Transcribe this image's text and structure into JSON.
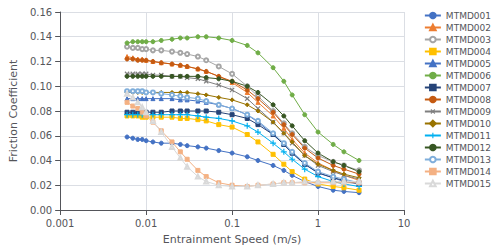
{
  "chart_data": {
    "type": "line",
    "title": "",
    "xlabel": "Entrainment Speed (m/s)",
    "ylabel": "Friction Coefficient",
    "log": "x",
    "grid": true,
    "legend": "upper right",
    "xlim": [
      0.001,
      10
    ],
    "xticks": [
      0.001,
      0.01,
      0.1,
      1,
      10
    ],
    "ylim": [
      0,
      0.16
    ],
    "yticks": [
      {
        "value": 0,
        "label": "0.00"
      },
      {
        "value": 0.02,
        "label": "0.02"
      },
      {
        "value": 0.04,
        "label": "0.04"
      },
      {
        "value": 0.06,
        "label": "0.06"
      },
      {
        "value": 0.08,
        "label": "0.08"
      },
      {
        "value": 0.1,
        "label": "0.10"
      },
      {
        "value": 0.12,
        "label": "0.12"
      },
      {
        "value": 0.14,
        "label": "0.14"
      },
      {
        "value": 0.16,
        "label": "0.16"
      }
    ],
    "x": [
      0.006,
      0.007,
      0.008,
      0.009,
      0.01,
      0.012,
      0.015,
      0.02,
      0.025,
      0.03,
      0.04,
      0.05,
      0.07,
      0.1,
      0.15,
      0.2,
      0.3,
      0.4,
      0.5,
      0.7,
      1.0,
      1.5,
      2.0,
      3.0
    ],
    "series": [
      {
        "name": "MTMD001",
        "color": "#4472C4",
        "marker": "circle",
        "values": [
          0.059,
          0.058,
          0.057,
          0.057,
          0.056,
          0.055,
          0.054,
          0.054,
          0.053,
          0.052,
          0.051,
          0.05,
          0.048,
          0.046,
          0.043,
          0.04,
          0.036,
          0.032,
          0.028,
          0.023,
          0.019,
          0.016,
          0.015,
          0.014
        ]
      },
      {
        "name": "MTMD002",
        "color": "#ED7D31",
        "marker": "triangle",
        "values": [
          0.124,
          0.123,
          0.122,
          0.122,
          0.121,
          0.12,
          0.119,
          0.118,
          0.117,
          0.116,
          0.114,
          0.112,
          0.108,
          0.103,
          0.095,
          0.087,
          0.076,
          0.066,
          0.057,
          0.046,
          0.038,
          0.032,
          0.028,
          0.024
        ]
      },
      {
        "name": "MTMD003",
        "color": "#A5A5A5",
        "marker": "circle-open",
        "values": [
          0.132,
          0.131,
          0.131,
          0.13,
          0.13,
          0.129,
          0.129,
          0.128,
          0.127,
          0.126,
          0.124,
          0.121,
          0.116,
          0.11,
          0.1,
          0.092,
          0.08,
          0.07,
          0.062,
          0.051,
          0.044,
          0.039,
          0.036,
          0.032
        ]
      },
      {
        "name": "MTMD004",
        "color": "#FFC000",
        "marker": "square",
        "values": [
          0.076,
          0.076,
          0.076,
          0.075,
          0.075,
          0.075,
          0.075,
          0.075,
          0.074,
          0.074,
          0.073,
          0.072,
          0.069,
          0.067,
          0.061,
          0.055,
          0.045,
          0.037,
          0.031,
          0.025,
          0.021,
          0.019,
          0.018,
          0.016
        ]
      },
      {
        "name": "MTMD005",
        "color": "#4472C4",
        "marker": "triangle",
        "values": [
          0.09,
          0.09,
          0.09,
          0.09,
          0.09,
          0.09,
          0.09,
          0.09,
          0.089,
          0.089,
          0.088,
          0.087,
          0.085,
          0.082,
          0.077,
          0.071,
          0.061,
          0.053,
          0.046,
          0.037,
          0.03,
          0.026,
          0.023,
          0.021
        ]
      },
      {
        "name": "MTMD006",
        "color": "#70AD47",
        "marker": "circle",
        "values": [
          0.135,
          0.136,
          0.136,
          0.136,
          0.136,
          0.136,
          0.137,
          0.138,
          0.139,
          0.139,
          0.14,
          0.14,
          0.139,
          0.137,
          0.133,
          0.127,
          0.115,
          0.104,
          0.093,
          0.077,
          0.063,
          0.053,
          0.047,
          0.04
        ]
      },
      {
        "name": "MTMD007",
        "color": "#264478",
        "marker": "square",
        "values": [
          0.079,
          0.079,
          0.079,
          0.079,
          0.079,
          0.079,
          0.079,
          0.08,
          0.08,
          0.08,
          0.08,
          0.08,
          0.079,
          0.077,
          0.074,
          0.069,
          0.061,
          0.053,
          0.046,
          0.037,
          0.03,
          0.026,
          0.024,
          0.021
        ]
      },
      {
        "name": "MTMD008",
        "color": "#C55A11",
        "marker": "circle",
        "values": [
          0.122,
          0.122,
          0.121,
          0.121,
          0.121,
          0.12,
          0.119,
          0.118,
          0.117,
          0.116,
          0.114,
          0.112,
          0.108,
          0.104,
          0.097,
          0.09,
          0.079,
          0.069,
          0.061,
          0.05,
          0.042,
          0.036,
          0.033,
          0.029
        ]
      },
      {
        "name": "MTMD009",
        "color": "#7F7F7F",
        "marker": "x",
        "values": [
          0.11,
          0.11,
          0.11,
          0.11,
          0.11,
          0.109,
          0.109,
          0.108,
          0.108,
          0.107,
          0.106,
          0.104,
          0.101,
          0.097,
          0.09,
          0.082,
          0.071,
          0.062,
          0.054,
          0.044,
          0.036,
          0.031,
          0.028,
          0.025
        ]
      },
      {
        "name": "MTMD010",
        "color": "#997300",
        "marker": "diamond",
        "values": [
          0.095,
          0.095,
          0.095,
          0.095,
          0.095,
          0.095,
          0.095,
          0.095,
          0.095,
          0.095,
          0.094,
          0.093,
          0.091,
          0.089,
          0.085,
          0.08,
          0.071,
          0.062,
          0.055,
          0.044,
          0.037,
          0.032,
          0.029,
          0.026
        ]
      },
      {
        "name": "MTMD011",
        "color": "#00B0F0",
        "marker": "plus",
        "values": [
          0.077,
          0.077,
          0.077,
          0.077,
          0.077,
          0.077,
          0.077,
          0.077,
          0.077,
          0.077,
          0.076,
          0.075,
          0.074,
          0.072,
          0.068,
          0.063,
          0.054,
          0.047,
          0.041,
          0.033,
          0.027,
          0.023,
          0.021,
          0.019
        ]
      },
      {
        "name": "MTMD012",
        "color": "#375623",
        "marker": "circle",
        "values": [
          0.108,
          0.108,
          0.108,
          0.108,
          0.108,
          0.108,
          0.108,
          0.108,
          0.108,
          0.108,
          0.108,
          0.107,
          0.106,
          0.104,
          0.1,
          0.095,
          0.085,
          0.076,
          0.068,
          0.056,
          0.046,
          0.039,
          0.036,
          0.031
        ]
      },
      {
        "name": "MTMD013",
        "color": "#7FAEDB",
        "marker": "circle-open",
        "values": [
          0.096,
          0.096,
          0.096,
          0.096,
          0.095,
          0.095,
          0.094,
          0.093,
          0.092,
          0.091,
          0.09,
          0.088,
          0.085,
          0.082,
          0.077,
          0.072,
          0.062,
          0.054,
          0.047,
          0.038,
          0.031,
          0.027,
          0.025,
          0.022
        ]
      },
      {
        "name": "MTMD014",
        "color": "#F4B183",
        "marker": "square",
        "values": [
          0.087,
          0.084,
          0.082,
          0.079,
          0.076,
          0.071,
          0.064,
          0.055,
          0.047,
          0.041,
          0.032,
          0.027,
          0.022,
          0.02,
          0.019,
          0.02,
          0.021,
          0.022,
          0.022,
          0.022,
          0.022,
          0.022,
          0.022,
          0.022
        ]
      },
      {
        "name": "MTMD015",
        "color": "#D9D9D9",
        "marker": "triangle-open",
        "values": [
          0.094,
          0.091,
          0.087,
          0.083,
          0.079,
          0.072,
          0.063,
          0.051,
          0.042,
          0.035,
          0.027,
          0.023,
          0.02,
          0.019,
          0.019,
          0.02,
          0.021,
          0.022,
          0.022,
          0.023,
          0.023,
          0.023,
          0.023,
          0.023
        ]
      }
    ]
  }
}
